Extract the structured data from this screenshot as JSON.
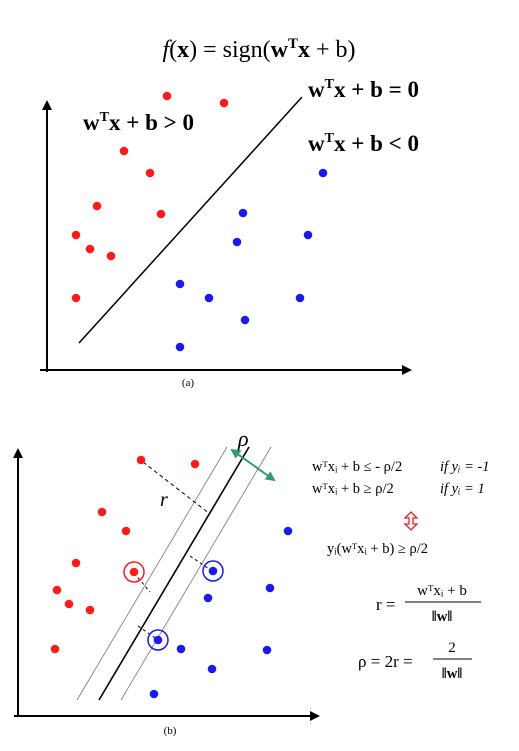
{
  "colors": {
    "red": "#ff1a1a",
    "blue": "#1a1aee",
    "margin_arrow": "#2e9a7a",
    "equiv_arrow": "#e02020"
  },
  "top": {
    "title_pre": "f",
    "title_mid": "(",
    "title_x": "x",
    "title_eq": ") = sign(",
    "title_w": "w",
    "title_T": "T",
    "title_x2": "x",
    "title_end": " + b)",
    "region_pos_w": "w",
    "region_pos_T": "T",
    "region_pos_rest": "x + b > 0",
    "boundary_w": "w",
    "boundary_T": "T",
    "boundary_rest": "x + b = 0",
    "region_neg_w": "w",
    "region_neg_T": "T",
    "region_neg_rest": "x + b < 0",
    "caption": "(a)"
  },
  "bottom": {
    "rho_label": "ρ",
    "r_label": "r",
    "eq1_left": "wᵀxᵢ + b ≤ - ρ/2",
    "eq1_cond": "if yᵢ = -1",
    "eq2_left": "wᵀxᵢ + b ≥ ρ/2",
    "eq2_cond": "if yᵢ = 1",
    "eq3": "yᵢ(wᵀxᵢ + b) ≥  ρ/2",
    "r_eq_lhs": "r =",
    "r_eq_num": "wᵀxᵢ + b",
    "r_eq_den": "‖w‖",
    "rho_eq_lhs": "ρ = 2r =",
    "rho_eq_num": "2",
    "rho_eq_den": "‖w‖",
    "caption": "(b)"
  }
}
